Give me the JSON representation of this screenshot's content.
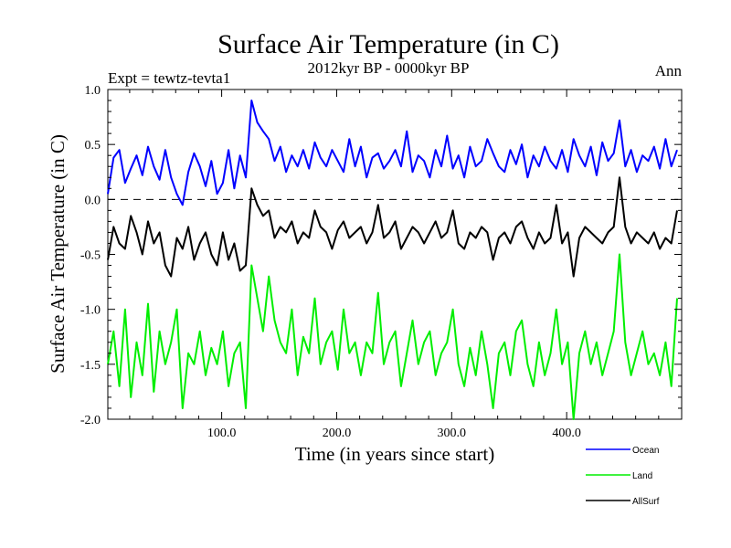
{
  "chart_data": {
    "type": "line",
    "title": "Surface Air Temperature (in C)",
    "subtitle": "2012kyr BP - 0000kyr BP",
    "experiment_label": "Expt = tewtz-tevta1",
    "season_label": "Ann",
    "xlabel": "Time (in years since start)",
    "ylabel": "Surface Air Temperature (in C)",
    "xlim": [
      1,
      500
    ],
    "ylim": [
      -2.0,
      1.0
    ],
    "x_ticks": [
      100,
      200,
      300,
      400
    ],
    "x_tick_labels": [
      "100.0",
      "200.0",
      "300.0",
      "400.0"
    ],
    "y_ticks": [
      -2.0,
      -1.5,
      -1.0,
      -0.5,
      0.0,
      0.5,
      1.0
    ],
    "y_tick_labels": [
      "-2.0",
      "-1.5",
      "-1.0",
      "-0.5",
      "0.0",
      "0.5",
      "1.0"
    ],
    "zero_reference_line": 0.0,
    "x_step": 5,
    "series": [
      {
        "name": "Ocean",
        "color": "#0000ff",
        "values": [
          0.05,
          0.38,
          0.45,
          0.15,
          0.28,
          0.4,
          0.22,
          0.48,
          0.3,
          0.18,
          0.45,
          0.2,
          0.05,
          -0.05,
          0.25,
          0.42,
          0.3,
          0.12,
          0.35,
          0.05,
          0.15,
          0.45,
          0.1,
          0.4,
          0.2,
          0.9,
          0.7,
          0.62,
          0.55,
          0.35,
          0.48,
          0.25,
          0.4,
          0.3,
          0.45,
          0.28,
          0.52,
          0.38,
          0.3,
          0.45,
          0.35,
          0.25,
          0.55,
          0.3,
          0.48,
          0.2,
          0.38,
          0.42,
          0.28,
          0.35,
          0.45,
          0.3,
          0.62,
          0.25,
          0.4,
          0.35,
          0.2,
          0.45,
          0.3,
          0.58,
          0.28,
          0.4,
          0.2,
          0.48,
          0.3,
          0.35,
          0.55,
          0.42,
          0.3,
          0.25,
          0.45,
          0.32,
          0.5,
          0.2,
          0.4,
          0.3,
          0.48,
          0.35,
          0.28,
          0.45,
          0.25,
          0.55,
          0.4,
          0.3,
          0.48,
          0.22,
          0.52,
          0.35,
          0.42,
          0.72,
          0.3,
          0.45,
          0.25,
          0.4,
          0.35,
          0.48,
          0.28,
          0.55,
          0.3,
          0.45
        ]
      },
      {
        "name": "Land",
        "color": "#00ee00",
        "values": [
          -1.5,
          -1.2,
          -1.7,
          -1.0,
          -1.8,
          -1.3,
          -1.6,
          -0.95,
          -1.75,
          -1.2,
          -1.5,
          -1.3,
          -1.0,
          -1.9,
          -1.4,
          -1.5,
          -1.2,
          -1.6,
          -1.35,
          -1.5,
          -1.2,
          -1.7,
          -1.4,
          -1.3,
          -1.9,
          -0.6,
          -0.9,
          -1.2,
          -0.7,
          -1.1,
          -1.3,
          -1.4,
          -1.0,
          -1.6,
          -1.25,
          -1.4,
          -0.9,
          -1.5,
          -1.3,
          -1.2,
          -1.55,
          -1.0,
          -1.4,
          -1.3,
          -1.6,
          -1.3,
          -1.4,
          -0.85,
          -1.5,
          -1.3,
          -1.2,
          -1.7,
          -1.4,
          -1.1,
          -1.5,
          -1.3,
          -1.2,
          -1.6,
          -1.4,
          -1.3,
          -1.0,
          -1.5,
          -1.7,
          -1.35,
          -1.6,
          -1.2,
          -1.5,
          -1.9,
          -1.4,
          -1.3,
          -1.6,
          -1.2,
          -1.1,
          -1.5,
          -1.7,
          -1.3,
          -1.6,
          -1.4,
          -1.0,
          -1.5,
          -1.3,
          -2.0,
          -1.4,
          -1.2,
          -1.5,
          -1.3,
          -1.6,
          -1.4,
          -1.2,
          -0.5,
          -1.3,
          -1.6,
          -1.4,
          -1.2,
          -1.5,
          -1.4,
          -1.6,
          -1.3,
          -1.7,
          -0.9
        ]
      },
      {
        "name": "AllSurf",
        "color": "#000000",
        "values": [
          -0.55,
          -0.25,
          -0.4,
          -0.45,
          -0.15,
          -0.3,
          -0.5,
          -0.2,
          -0.4,
          -0.3,
          -0.6,
          -0.7,
          -0.35,
          -0.45,
          -0.25,
          -0.55,
          -0.4,
          -0.3,
          -0.5,
          -0.6,
          -0.3,
          -0.55,
          -0.4,
          -0.65,
          -0.6,
          0.1,
          -0.05,
          -0.15,
          -0.1,
          -0.35,
          -0.25,
          -0.3,
          -0.2,
          -0.4,
          -0.3,
          -0.35,
          -0.1,
          -0.25,
          -0.3,
          -0.45,
          -0.28,
          -0.2,
          -0.35,
          -0.3,
          -0.25,
          -0.4,
          -0.3,
          -0.05,
          -0.35,
          -0.3,
          -0.2,
          -0.45,
          -0.35,
          -0.25,
          -0.3,
          -0.4,
          -0.3,
          -0.2,
          -0.35,
          -0.3,
          -0.1,
          -0.4,
          -0.45,
          -0.3,
          -0.35,
          -0.25,
          -0.3,
          -0.55,
          -0.35,
          -0.3,
          -0.4,
          -0.25,
          -0.2,
          -0.35,
          -0.45,
          -0.3,
          -0.4,
          -0.35,
          -0.05,
          -0.4,
          -0.3,
          -0.7,
          -0.35,
          -0.25,
          -0.3,
          -0.35,
          -0.4,
          -0.3,
          -0.25,
          0.2,
          -0.25,
          -0.4,
          -0.3,
          -0.35,
          -0.4,
          -0.3,
          -0.45,
          -0.35,
          -0.4,
          -0.1
        ]
      }
    ]
  }
}
